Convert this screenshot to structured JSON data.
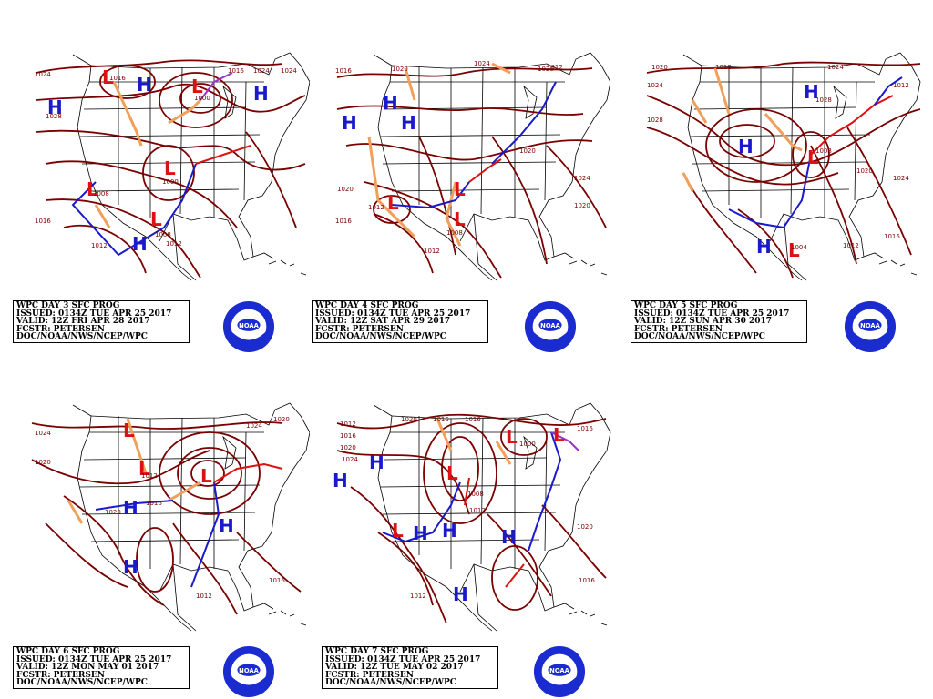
{
  "colors": {
    "isobar": "#7a0000",
    "high": "#1a1acc",
    "low": "#dd1111",
    "trough": "#f0a05a",
    "cold_front": "#1a1acc",
    "warm_front": "#dd1111",
    "occluded": "#9933cc",
    "land_outline": "#000000"
  },
  "panels": [
    {
      "info": {
        "line1": "WPC DAY 3 SFC PROG",
        "line2": "ISSUED: 0134Z TUE APR 25 2017",
        "line3": "VALID: 12Z FRI APR 28 2017",
        "line4": "FCSTR: PETERSEN",
        "line5": "DOC/NOAA/NWS/NCEP/WPC"
      },
      "isobar_labels": [
        "1024",
        "1028",
        "1016",
        "1016",
        "1024",
        "1024",
        "1016",
        "1012",
        "1008",
        "1000",
        "1008",
        "1012",
        "1000"
      ],
      "highs": 4,
      "lows": 5
    },
    {
      "info": {
        "line1": "WPC DAY 4 SFC PROG",
        "line2": "ISSUED: 0134Z TUE APR 25 2017",
        "line3": "VALID: 12Z SAT APR 29 2017",
        "line4": "FCSTR: PETERSEN",
        "line5": "DOC/NOAA/NWS/NCEP/WPC"
      },
      "isobar_labels": [
        "1016",
        "1020",
        "1020",
        "1012",
        "1024",
        "1020",
        "1016",
        "1012",
        "1008",
        "1020",
        "1024",
        "1020",
        "1012"
      ],
      "highs": 3,
      "lows": 3
    },
    {
      "info": {
        "line1": "WPC DAY 5 SFC PROG",
        "line2": "ISSUED: 0134Z TUE APR 25 2017",
        "line3": "VALID: 12Z SUN APR 30 2017",
        "line4": "FCSTR: PETERSEN",
        "line5": "DOC/NOAA/NWS/NCEP/WPC"
      },
      "isobar_labels": [
        "1020",
        "1016",
        "1024",
        "1028",
        "1024",
        "1008",
        "1012",
        "1028",
        "1020",
        "1024",
        "1016",
        "1012",
        "1004"
      ],
      "highs": 3,
      "lows": 2
    },
    {
      "info": {
        "line1": "WPC DAY 6 SFC PROG",
        "line2": "ISSUED: 0134Z TUE APR 25 2017",
        "line3": "VALID: 12Z MON MAY 01 2017",
        "line4": "FCSTR: PETERSEN",
        "line5": "DOC/NOAA/NWS/NCEP/WPC"
      },
      "isobar_labels": [
        "1024",
        "1020",
        "1012",
        "1016",
        "1020",
        "1024",
        "1020",
        "1012",
        "1016"
      ],
      "highs": 3,
      "lows": 3
    },
    {
      "info": {
        "line1": "WPC DAY 7 SFC PROG",
        "line2": "ISSUED: 0134Z TUE APR 25 2017",
        "line3": "VALID: 12Z TUE MAY 02 2017",
        "line4": "FCSTR: PETERSEN",
        "line5": "DOC/NOAA/NWS/NCEP/WPC"
      },
      "isobar_labels": [
        "1012",
        "1016",
        "1020",
        "1024",
        "1020",
        "1016",
        "1016",
        "1000",
        "1008",
        "1012",
        "1020",
        "1016",
        "1012",
        "1016"
      ],
      "highs": 6,
      "lows": 4
    }
  ],
  "logo": {
    "text": "NOAA"
  }
}
